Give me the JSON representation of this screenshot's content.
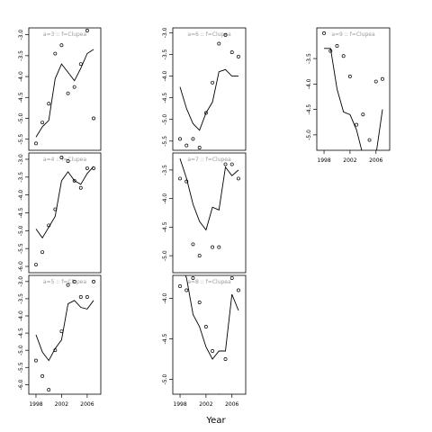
{
  "x_axis_title": "Year",
  "chart_data": [
    {
      "type": "line",
      "panel": "a=3 :: f=Clupea",
      "title": "a=3  :: f=Clupea",
      "ylim": [
        -5.7,
        -2.9
      ],
      "yticks": [
        -5.5,
        -5.0,
        -4.5,
        -4.0,
        -3.5,
        -3.0
      ],
      "ytick_labels": [
        "-5.5",
        "-5.0",
        "-4.5",
        "-4.0",
        "-3.5",
        "-3.0"
      ],
      "xlim": [
        1997.3,
        2007.7
      ],
      "xticks": [],
      "xtick_labels": [],
      "series": [
        {
          "style": "points",
          "x": [
            1998,
            1999,
            2000,
            2001,
            2002,
            2003,
            2004,
            2005,
            2006,
            2007
          ],
          "y": [
            -5.6,
            -5.1,
            -4.65,
            -3.45,
            -3.25,
            -4.4,
            -4.25,
            -3.7,
            -2.9,
            -5.0
          ]
        },
        {
          "style": "line",
          "x": [
            1998,
            1999,
            2000,
            2001,
            2002,
            2003,
            2004,
            2005,
            2006,
            2007
          ],
          "y": [
            -5.45,
            -5.2,
            -5.05,
            -4.05,
            -3.7,
            -3.9,
            -4.1,
            -3.8,
            -3.45,
            -3.35
          ]
        }
      ]
    },
    {
      "type": "line",
      "panel": "a=4 :: f=Clupea",
      "title": "a=4  :: f=Clupea",
      "ylim": [
        -6.1,
        -2.9
      ],
      "yticks": [
        -6.0,
        -5.5,
        -5.0,
        -4.5,
        -4.0,
        -3.5,
        -3.0
      ],
      "ytick_labels": [
        "-6.0",
        "-5.5",
        "-5.0",
        "-4.5",
        "-4.0",
        "-3.5",
        "-3.0"
      ],
      "xlim": [
        1997.3,
        2007.7
      ],
      "xticks": [],
      "xtick_labels": [],
      "series": [
        {
          "style": "points",
          "x": [
            1998,
            1999,
            2000,
            2001,
            2002,
            2003,
            2004,
            2005,
            2006,
            2007
          ],
          "y": [
            -5.95,
            -5.6,
            -4.85,
            -4.4,
            -2.95,
            -3.05,
            -3.6,
            -3.8,
            -3.25,
            -3.25
          ]
        },
        {
          "style": "line",
          "x": [
            1998,
            1999,
            2000,
            2001,
            2002,
            2003,
            2004,
            2005,
            2006,
            2007
          ],
          "y": [
            -4.95,
            -5.2,
            -4.9,
            -4.6,
            -3.6,
            -3.35,
            -3.6,
            -3.7,
            -3.4,
            -3.2
          ]
        }
      ]
    },
    {
      "type": "line",
      "panel": "a=5 :: f=Clupea",
      "title": "a=5  :: f=Clupea",
      "ylim": [
        -6.2,
        -2.9
      ],
      "yticks": [
        -6.0,
        -5.5,
        -5.0,
        -4.5,
        -4.0,
        -3.5,
        -3.0
      ],
      "ytick_labels": [
        "-6.0",
        "-5.5",
        "-5.0",
        "-4.5",
        "-4.0",
        "-3.5",
        "-3.0"
      ],
      "xlim": [
        1997.3,
        2007.7
      ],
      "xticks": [
        1998,
        2002,
        2006
      ],
      "xtick_labels": [
        "1998",
        "2002",
        "2006"
      ],
      "series": [
        {
          "style": "points",
          "x": [
            1998,
            1999,
            2000,
            2001,
            2002,
            2003,
            2004,
            2005,
            2006,
            2007
          ],
          "y": [
            -5.3,
            -5.75,
            -6.15,
            -5.0,
            -4.45,
            -3.1,
            -3.0,
            -3.45,
            -3.45,
            -3.0
          ]
        },
        {
          "style": "line",
          "x": [
            1998,
            1999,
            2000,
            2001,
            2002,
            2003,
            2004,
            2005,
            2006,
            2007
          ],
          "y": [
            -4.55,
            -5.05,
            -5.3,
            -4.95,
            -4.7,
            -3.65,
            -3.55,
            -3.75,
            -3.8,
            -3.55
          ]
        }
      ]
    },
    {
      "type": "line",
      "panel": "a=6 :: f=Clupea",
      "title": "a=6  :: f=Clupea",
      "ylim": [
        -5.65,
        -2.95
      ],
      "yticks": [
        -5.5,
        -5.0,
        -4.5,
        -4.0,
        -3.5,
        -3.0
      ],
      "ytick_labels": [
        "-5.5",
        "-5.0",
        "-4.5",
        "-4.0",
        "-3.5",
        "-3.0"
      ],
      "xlim": [
        1997.3,
        2007.7
      ],
      "xticks": [],
      "xtick_labels": [],
      "series": [
        {
          "style": "points",
          "x": [
            1998,
            1999,
            2000,
            2001,
            2002,
            2003,
            2004,
            2005,
            2006,
            2007
          ],
          "y": [
            -5.45,
            -5.6,
            -5.45,
            -5.65,
            -4.85,
            -4.15,
            -3.25,
            -3.05,
            -3.45,
            -3.55
          ]
        },
        {
          "style": "line",
          "x": [
            1998,
            1999,
            2000,
            2001,
            2002,
            2003,
            2004,
            2005,
            2006,
            2007
          ],
          "y": [
            -4.25,
            -4.75,
            -5.1,
            -5.25,
            -4.85,
            -4.6,
            -3.9,
            -3.85,
            -4.0,
            -4.0
          ]
        }
      ]
    },
    {
      "type": "line",
      "panel": "a=7 :: f=Clupea",
      "title": "a=7  :: f=Clupea",
      "ylim": [
        -5.25,
        -3.25
      ],
      "yticks": [
        -5.0,
        -4.5,
        -4.0,
        -3.5
      ],
      "ytick_labels": [
        "-5.0",
        "-4.5",
        "-4.0",
        "-3.5"
      ],
      "xlim": [
        1997.3,
        2007.7
      ],
      "xticks": [],
      "xtick_labels": [],
      "series": [
        {
          "style": "points",
          "x": [
            1998,
            1999,
            2000,
            2001,
            2002,
            2003,
            2004,
            2005,
            2006,
            2007
          ],
          "y": [
            -3.65,
            -3.7,
            -4.8,
            -5.0,
            -5.45,
            -4.85,
            -4.85,
            -3.4,
            -3.4,
            -3.65
          ]
        },
        {
          "style": "line",
          "x": [
            1998,
            1999,
            2000,
            2001,
            2002,
            2003,
            2004,
            2005,
            2006,
            2007
          ],
          "y": [
            -3.3,
            -3.65,
            -4.1,
            -4.4,
            -4.55,
            -4.15,
            -4.2,
            -3.45,
            -3.6,
            -3.5
          ]
        }
      ]
    },
    {
      "type": "line",
      "panel": "a=8 :: f=Clupea",
      "title": "a=8  :: f=Clupea",
      "ylim": [
        -5.15,
        -3.75
      ],
      "yticks": [
        -5.0,
        -4.5,
        -4.0
      ],
      "ytick_labels": [
        "-5.0",
        "-4.5",
        "-4.0"
      ],
      "xlim": [
        1997.3,
        2007.7
      ],
      "xticks": [
        1998,
        2002,
        2006
      ],
      "xtick_labels": [
        "1998",
        "2002",
        "2006"
      ],
      "series": [
        {
          "style": "points",
          "x": [
            1998,
            1999,
            2000,
            2001,
            2002,
            2003,
            2004,
            2005,
            2006,
            2007
          ],
          "y": [
            -3.85,
            -3.9,
            -3.75,
            -4.05,
            -4.35,
            -4.65,
            -5.2,
            -4.75,
            -3.75,
            -3.9
          ]
        },
        {
          "style": "line",
          "x": [
            1998,
            1999,
            2000,
            2001,
            2002,
            2003,
            2004,
            2005,
            2006,
            2007
          ],
          "y": [
            -3.55,
            -3.75,
            -4.2,
            -4.35,
            -4.6,
            -4.75,
            -4.65,
            -4.65,
            -3.95,
            -4.15
          ]
        }
      ]
    },
    {
      "type": "line",
      "panel": "a=9 :: f=Clupea",
      "title": "a=9  :: f=Clupea",
      "ylim": [
        -5.25,
        -2.95
      ],
      "yticks": [
        -5.0,
        -4.5,
        -4.0,
        -3.5
      ],
      "ytick_labels": [
        "-5.0",
        "-4.5",
        "-4.0",
        "-3.5"
      ],
      "xlim": [
        1997.3,
        2007.7
      ],
      "xticks": [
        1998,
        2002,
        2006
      ],
      "xtick_labels": [
        "1998",
        "2002",
        "2006"
      ],
      "series": [
        {
          "style": "points",
          "x": [
            1998,
            1999,
            2000,
            2001,
            2002,
            2003,
            2004,
            2005,
            2006,
            2007
          ],
          "y": [
            -3.0,
            -3.35,
            -3.25,
            -3.45,
            -3.85,
            -4.8,
            -4.6,
            -5.1,
            -3.95,
            -3.9
          ]
        },
        {
          "style": "line",
          "x": [
            1998,
            1999,
            2000,
            2001,
            2002,
            2003,
            2004,
            2005,
            2006,
            2007
          ],
          "y": [
            -3.3,
            -3.3,
            -4.1,
            -4.55,
            -4.6,
            -4.9,
            -5.4,
            -5.35,
            -5.4,
            -4.5
          ]
        }
      ]
    }
  ]
}
